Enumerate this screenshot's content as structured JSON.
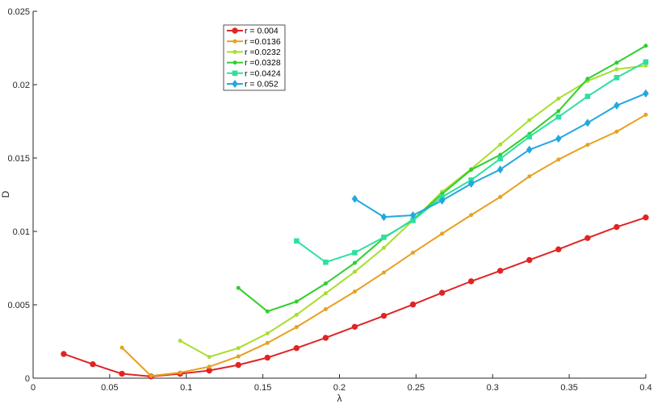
{
  "chart_data": {
    "type": "line",
    "xlabel": "λ",
    "ylabel": "D",
    "xlim": [
      0,
      0.4
    ],
    "ylim": [
      0,
      0.025
    ],
    "xticks": [
      "0",
      "0.05",
      "0.1",
      "0.15",
      "0.2",
      "0.25",
      "0.3",
      "0.35",
      "0.4"
    ],
    "yticks": [
      "0",
      "0.005",
      "0.01",
      "0.015",
      "0.02",
      "0.025"
    ],
    "grid": false,
    "legend_position": "top-center",
    "series": [
      {
        "name": "r = 0.004",
        "color": "#e02424",
        "marker": "circle",
        "x": [
          0.02,
          0.039,
          0.058,
          0.077,
          0.096,
          0.115,
          0.134,
          0.153,
          0.172,
          0.191,
          0.21,
          0.229,
          0.248,
          0.267,
          0.286,
          0.305,
          0.324,
          0.343,
          0.362,
          0.381,
          0.4
        ],
        "y": [
          0.00165,
          0.00095,
          0.0003,
          0.00012,
          0.0003,
          0.00052,
          0.0009,
          0.0014,
          0.00205,
          0.00275,
          0.0035,
          0.00425,
          0.00502,
          0.00582,
          0.0066,
          0.00732,
          0.00805,
          0.00878,
          0.00955,
          0.0103,
          0.01095
        ]
      },
      {
        "name": "r =0.0136",
        "color": "#e8a020",
        "marker": "dot",
        "x": [
          0.058,
          0.077,
          0.096,
          0.115,
          0.134,
          0.153,
          0.172,
          0.191,
          0.21,
          0.229,
          0.248,
          0.267,
          0.286,
          0.305,
          0.324,
          0.343,
          0.362,
          0.381,
          0.4
        ],
        "y": [
          0.00208,
          0.00015,
          0.00038,
          0.00078,
          0.00148,
          0.0024,
          0.00348,
          0.0047,
          0.0059,
          0.0072,
          0.00855,
          0.00985,
          0.01112,
          0.01235,
          0.01375,
          0.0149,
          0.0159,
          0.0168,
          0.01795
        ]
      },
      {
        "name": "r =0.0232",
        "color": "#a8de30",
        "marker": "dot",
        "x": [
          0.096,
          0.115,
          0.134,
          0.153,
          0.172,
          0.191,
          0.21,
          0.229,
          0.248,
          0.267,
          0.286,
          0.305,
          0.324,
          0.343,
          0.362,
          0.381,
          0.4
        ],
        "y": [
          0.00255,
          0.00145,
          0.00205,
          0.00305,
          0.00432,
          0.00578,
          0.00725,
          0.00888,
          0.01075,
          0.0127,
          0.01425,
          0.01592,
          0.01758,
          0.01905,
          0.02025,
          0.02105,
          0.0213
        ]
      },
      {
        "name": "r =0.0328",
        "color": "#2ecf2e",
        "marker": "dot",
        "x": [
          0.134,
          0.153,
          0.172,
          0.191,
          0.21,
          0.229,
          0.248,
          0.267,
          0.286,
          0.305,
          0.324,
          0.343,
          0.362,
          0.381,
          0.4
        ],
        "y": [
          0.00615,
          0.00455,
          0.00522,
          0.00645,
          0.00785,
          0.00955,
          0.0108,
          0.01255,
          0.0142,
          0.01522,
          0.01665,
          0.0182,
          0.0204,
          0.0215,
          0.02265
        ]
      },
      {
        "name": "r =0.0424",
        "color": "#2ee09e",
        "marker": "square",
        "x": [
          0.172,
          0.191,
          0.21,
          0.229,
          0.248,
          0.267,
          0.286,
          0.305,
          0.324,
          0.343,
          0.362,
          0.381,
          0.4
        ],
        "y": [
          0.00935,
          0.0079,
          0.00855,
          0.0096,
          0.01075,
          0.01235,
          0.0135,
          0.01495,
          0.01645,
          0.0178,
          0.0192,
          0.02048,
          0.02155
        ]
      },
      {
        "name": "r = 0.052",
        "color": "#22a8e0",
        "marker": "diamond",
        "x": [
          0.21,
          0.229,
          0.248,
          0.267,
          0.286,
          0.305,
          0.324,
          0.343,
          0.362,
          0.381,
          0.4
        ],
        "y": [
          0.01222,
          0.01098,
          0.0111,
          0.0121,
          0.01325,
          0.01422,
          0.01557,
          0.01632,
          0.0174,
          0.01858,
          0.0194
        ]
      }
    ]
  }
}
